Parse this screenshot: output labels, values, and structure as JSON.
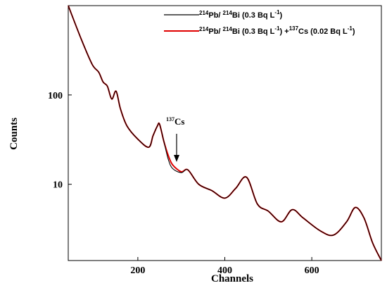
{
  "chart_data": {
    "type": "line",
    "title": "",
    "xlabel": "Channels",
    "ylabel": "Counts",
    "xlim": [
      40,
      760
    ],
    "ylim": [
      1.4,
      1000
    ],
    "yscale": "log",
    "grid": false,
    "legend_position": "top-right",
    "x_ticks": [
      200,
      400,
      600
    ],
    "y_ticks": [
      10,
      100
    ],
    "x_tick_labels": [
      "200",
      "400",
      "600"
    ],
    "y_tick_labels": [
      "10",
      "100"
    ],
    "legend": {
      "entry1": {
        "pre": "214",
        "a": "Pb/ ",
        "sup2": "214",
        "b": "Bi (0.3 Bq L",
        "sup3": "-1",
        "c": ")"
      },
      "entry2": {
        "pre": "214",
        "a": "Pb/ ",
        "sup2": "214",
        "b": "Bi (0.3 Bq L",
        "sup3": "-1",
        "c": ") +",
        "sup4": "137",
        "d": "Cs (0.02 Bq L",
        "sup5": "-1",
        "e": ")"
      }
    },
    "annotation": {
      "sup": "137",
      "text": "Cs",
      "x": 285,
      "y": 15
    },
    "series": [
      {
        "color": "#000000",
        "x": [
          40,
          70,
          95,
          110,
          120,
          130,
          140,
          150,
          160,
          175,
          200,
          225,
          235,
          245,
          250,
          260,
          270,
          280,
          300,
          315,
          340,
          370,
          400,
          425,
          450,
          475,
          500,
          530,
          555,
          580,
          620,
          650,
          680,
          700,
          720,
          740,
          760
        ],
        "y": [
          1000,
          420,
          220,
          180,
          140,
          125,
          90,
          110,
          70,
          45,
          32,
          26,
          35,
          45,
          47,
          30,
          19,
          15,
          13.5,
          14.5,
          10,
          8.5,
          7,
          9,
          12,
          6,
          5,
          3.8,
          5.2,
          4.2,
          3.0,
          2.7,
          3.8,
          5.5,
          4.2,
          2.2,
          1.4
        ]
      },
      {
        "color": "#e00000",
        "x": [
          40,
          70,
          95,
          110,
          120,
          130,
          140,
          150,
          160,
          175,
          200,
          225,
          235,
          245,
          250,
          260,
          270,
          280,
          300,
          315,
          340,
          370,
          400,
          425,
          450,
          475,
          500,
          530,
          555,
          580,
          620,
          650,
          680,
          700,
          720,
          740,
          760
        ],
        "y": [
          1000,
          420,
          220,
          180,
          140,
          125,
          90,
          110,
          70,
          45,
          32,
          26,
          35,
          45,
          47,
          30,
          21,
          16.5,
          13.8,
          14.5,
          10,
          8.5,
          7,
          9,
          12,
          6,
          5,
          3.8,
          5.2,
          4.2,
          3.0,
          2.7,
          3.8,
          5.5,
          4.2,
          2.2,
          1.4
        ]
      }
    ]
  }
}
